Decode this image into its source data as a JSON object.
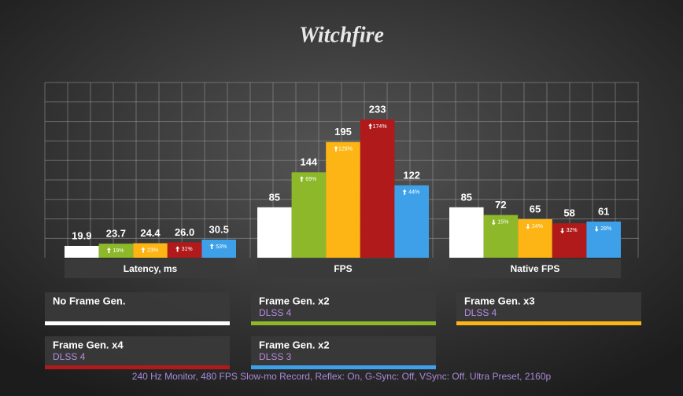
{
  "chart_data": {
    "type": "bar",
    "title": "Witchfire",
    "categories": [
      "Latency, ms",
      "FPS",
      "Native FPS"
    ],
    "series": [
      {
        "name": "No Frame Gen.",
        "sub": null,
        "color": "#ffffff",
        "values": [
          19.9,
          85,
          85
        ],
        "value_labels": [
          "19.9",
          "85",
          "85"
        ],
        "change_labels": [
          null,
          null,
          null
        ],
        "change_dir": [
          null,
          null,
          null
        ]
      },
      {
        "name": "Frame Gen. x2",
        "sub": "DLSS 4",
        "color": "#8cb82a",
        "values": [
          23.7,
          144,
          72
        ],
        "value_labels": [
          "23.7",
          "144",
          "72"
        ],
        "change_labels": [
          "19%",
          "69%",
          "15%"
        ],
        "change_dir": [
          "up",
          "up",
          "down"
        ]
      },
      {
        "name": "Frame Gen. x3",
        "sub": "DLSS 4",
        "color": "#fdb515",
        "values": [
          24.4,
          195,
          65
        ],
        "value_labels": [
          "24.4",
          "195",
          "65"
        ],
        "change_labels": [
          "23%",
          "129%",
          "24%"
        ],
        "change_dir": [
          "up",
          "up",
          "down"
        ]
      },
      {
        "name": "Frame Gen. x4",
        "sub": "DLSS 4",
        "color": "#b01a1a",
        "values": [
          26.0,
          233,
          58
        ],
        "value_labels": [
          "26.0",
          "233",
          "58"
        ],
        "change_labels": [
          "31%",
          "174%",
          "32%"
        ],
        "change_dir": [
          "up",
          "up",
          "down"
        ]
      },
      {
        "name": "Frame Gen. x2",
        "sub": "DLSS 3",
        "color": "#3ea0e8",
        "values": [
          30.5,
          122,
          61
        ],
        "value_labels": [
          "30.5",
          "122",
          "61"
        ],
        "change_labels": [
          "53%",
          "44%",
          "28%"
        ],
        "change_dir": [
          "up",
          "up",
          "down"
        ]
      }
    ],
    "footnote": "240 Hz Monitor, 480 FPS Slow-mo Record, Reflex: On, G-Sync: Off, VSync: Off. Ultra Preset, 2160p"
  }
}
